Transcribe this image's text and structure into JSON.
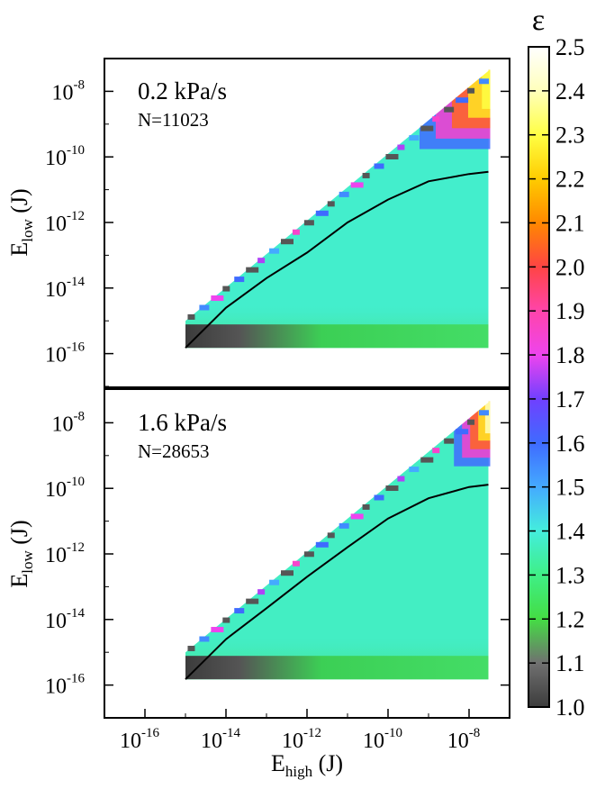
{
  "chart_data": {
    "type": "heatmap",
    "colorbar": {
      "symbol": "ε",
      "range": [
        1.0,
        2.5
      ],
      "ticks": [
        "1.0",
        "1.1",
        "1.2",
        "1.3",
        "1.4",
        "1.5",
        "1.6",
        "1.7",
        "1.8",
        "1.9",
        "2.0",
        "2.1",
        "2.2",
        "2.3",
        "2.4",
        "2.5"
      ],
      "colormap": [
        {
          "v": 1.0,
          "color": "#3c3c3c"
        },
        {
          "v": 1.1,
          "color": "#707070"
        },
        {
          "v": 1.2,
          "color": "#44dd44"
        },
        {
          "v": 1.3,
          "color": "#3fef86"
        },
        {
          "v": 1.4,
          "color": "#44eedd"
        },
        {
          "v": 1.5,
          "color": "#44aaff"
        },
        {
          "v": 1.6,
          "color": "#3f6bff"
        },
        {
          "v": 1.7,
          "color": "#7040ff"
        },
        {
          "v": 1.8,
          "color": "#ee44ee"
        },
        {
          "v": 1.9,
          "color": "#ff44aa"
        },
        {
          "v": 2.0,
          "color": "#ff4444"
        },
        {
          "v": 2.1,
          "color": "#ff8800"
        },
        {
          "v": 2.2,
          "color": "#ffcc00"
        },
        {
          "v": 2.3,
          "color": "#ffff44"
        },
        {
          "v": 2.4,
          "color": "#ffffbb"
        },
        {
          "v": 2.5,
          "color": "#ffffff"
        }
      ]
    },
    "x_axis": {
      "label_main": "E",
      "label_sub": "high",
      "label_unit": " (J)",
      "scale": "log",
      "range": [
        1e-17,
        1e-07
      ],
      "ticks": [
        {
          "value": 1e-16,
          "base": "10",
          "exp": "-16"
        },
        {
          "value": 1e-14,
          "base": "10",
          "exp": "-14"
        },
        {
          "value": 1e-12,
          "base": "10",
          "exp": "-12"
        },
        {
          "value": 1e-10,
          "base": "10",
          "exp": "-10"
        },
        {
          "value": 1e-08,
          "base": "10",
          "exp": "-8"
        }
      ]
    },
    "panels": [
      {
        "title": "0.2 kPa/s",
        "note": "N=11023",
        "y_axis": {
          "label_main": "E",
          "label_sub": "low",
          "label_unit": " (J)",
          "scale": "log",
          "range": [
            1e-17,
            1e-07
          ],
          "ticks": [
            {
              "value": 1e-16,
              "base": "10",
              "exp": "-16"
            },
            {
              "value": 1e-14,
              "base": "10",
              "exp": "-14"
            },
            {
              "value": 1e-12,
              "base": "10",
              "exp": "-12"
            },
            {
              "value": 1e-10,
              "base": "10",
              "exp": "-10"
            },
            {
              "value": 1e-08,
              "base": "10",
              "exp": "-8"
            }
          ]
        },
        "map": {
          "x_range": [
            1e-15,
            3e-08
          ],
          "y_floor": 1.5e-16,
          "background_epsilon": 1.38,
          "dark_strip_epsilon": 1.02,
          "hot_region": {
            "x_from": 3e-10,
            "y_from": 1e-10,
            "epsilon_max": 2.3
          }
        },
        "curve": {
          "x": [
            1e-15,
            1e-14,
            1e-13,
            1e-12,
            1e-11,
            1e-10,
            1e-09,
            1e-08,
            3e-08
          ],
          "y": [
            1.5e-16,
            2.5e-15,
            2e-14,
            1.2e-13,
            1e-12,
            5e-12,
            1.8e-11,
            3e-11,
            3.5e-11
          ]
        }
      },
      {
        "title": "1.6 kPa/s",
        "note": "N=28653",
        "y_axis": {
          "label_main": "E",
          "label_sub": "low",
          "label_unit": " (J)",
          "scale": "log",
          "range": [
            1e-17,
            1e-07
          ],
          "ticks": [
            {
              "value": 1e-16,
              "base": "10",
              "exp": "-16"
            },
            {
              "value": 1e-14,
              "base": "10",
              "exp": "-14"
            },
            {
              "value": 1e-12,
              "base": "10",
              "exp": "-12"
            },
            {
              "value": 1e-10,
              "base": "10",
              "exp": "-10"
            },
            {
              "value": 1e-08,
              "base": "10",
              "exp": "-8"
            }
          ]
        },
        "map": {
          "x_range": [
            1e-15,
            3e-08
          ],
          "y_floor": 1.5e-16,
          "background_epsilon": 1.37,
          "dark_strip_epsilon": 1.02,
          "hot_region": {
            "x_from": 3e-09,
            "y_from": 3e-10,
            "epsilon_max": 2.4
          }
        },
        "curve": {
          "x": [
            1e-15,
            1e-14,
            1e-13,
            1e-12,
            1e-11,
            1e-10,
            1e-09,
            1e-08,
            3e-08
          ],
          "y": [
            1.5e-16,
            2.5e-15,
            2.2e-14,
            2e-13,
            1.6e-12,
            1.2e-11,
            5e-11,
            1.1e-10,
            1.3e-10
          ]
        }
      }
    ]
  }
}
